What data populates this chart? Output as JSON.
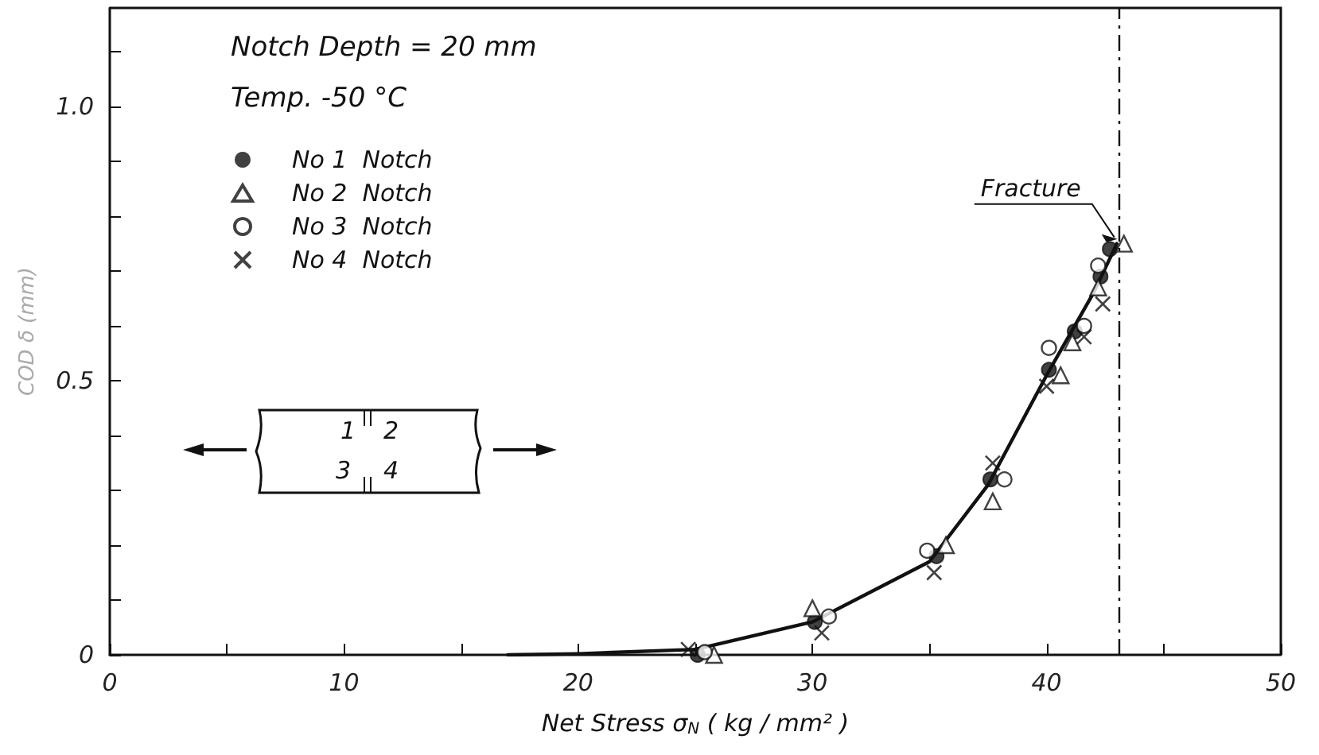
{
  "chart_data": {
    "type": "scatter",
    "xlabel": "Net Stress σ$_{N}$ ( kg / mm² )",
    "ylabel": "COD δ (mm)",
    "xlim": [
      0,
      50
    ],
    "xticks": [
      0,
      {
        "value": 5,
        "label": null
      },
      10,
      {
        "value": 15,
        "label": null
      },
      20,
      {
        "value": 25,
        "label": null
      },
      30,
      {
        "value": 35,
        "label": null
      },
      40,
      {
        "value": 45,
        "label": null
      },
      50
    ],
    "ylim": [
      0,
      1.18
    ],
    "yticks": [
      0,
      {
        "value": 0.1,
        "label": null
      },
      {
        "value": 0.2,
        "label": null
      },
      {
        "value": 0.3,
        "label": null
      },
      {
        "value": 0.4,
        "label": null
      },
      0.5,
      {
        "value": 0.6,
        "label": null
      },
      {
        "value": 0.7,
        "label": null
      },
      {
        "value": 0.8,
        "label": null
      },
      {
        "value": 0.9,
        "label": null
      },
      {
        "value": 1.0,
        "label": "1.0"
      },
      {
        "value": 1.1,
        "label": null
      }
    ],
    "grid": false,
    "legend": "top left",
    "series": [
      {
        "name": "No 1  Notch",
        "color": "#111111",
        "marker": "circle",
        "x": [
          25.1,
          30.1,
          35.3,
          37.6,
          40.1,
          41.2,
          42.3,
          42.7
        ],
        "values": [
          0,
          0.06,
          0.18,
          0.32,
          0.52,
          0.59,
          0.69,
          0.74
        ]
      },
      {
        "name": "No 2  Notch",
        "color": "#111111",
        "marker": "triangle",
        "x": [
          25.8,
          30.0,
          35.7,
          37.7,
          40.6,
          41.1,
          42.2,
          43.3
        ],
        "values": [
          0,
          0.085,
          0.2,
          0.28,
          0.51,
          0.57,
          0.67,
          0.75
        ]
      },
      {
        "name": "No 3  Notch",
        "color": "#111111",
        "marker": "circle",
        "x": [
          25.4,
          30.7,
          34.9,
          38.2,
          40.1,
          41.6,
          42.2
        ],
        "values": [
          0.005,
          0.07,
          0.19,
          0.32,
          0.56,
          0.6,
          0.71
        ]
      },
      {
        "name": "No 4  Notch",
        "color": "#111111",
        "marker": "cross",
        "x": [
          24.7,
          30.4,
          35.2,
          37.7,
          40.0,
          41.6,
          42.4
        ],
        "values": [
          0.01,
          0.04,
          0.15,
          0.35,
          0.49,
          0.58,
          0.64
        ]
      },
      {
        "type": "line",
        "color": "#111111",
        "marker": "none",
        "line_style": "solid",
        "x": [
          17,
          20,
          25,
          30,
          35,
          37.5,
          40,
          42,
          43
        ],
        "values": [
          0,
          0.002,
          0.01,
          0.06,
          0.17,
          0.31,
          0.51,
          0.66,
          0.75
        ]
      }
    ],
    "ref_lines": [
      {
        "axis": "x",
        "value": 43.1,
        "color": "#111111",
        "line_style": "dashdot"
      }
    ],
    "annotations": [
      "Notch  Depth = 20 mm",
      "Temp.  -50 °C",
      {
        "text": "Fracture",
        "x": 43.3,
        "y": 0.75
      },
      "1",
      "2",
      "3",
      "4"
    ]
  }
}
